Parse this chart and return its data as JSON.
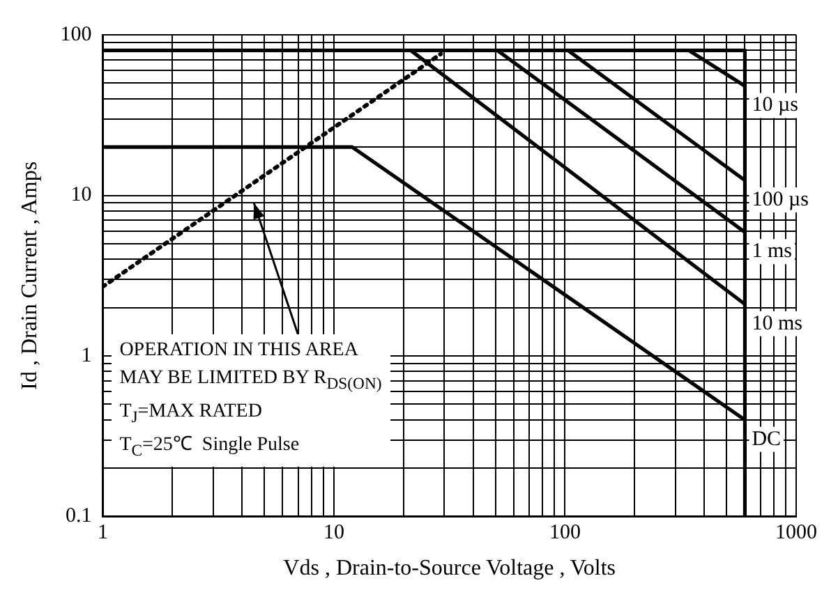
{
  "chart_data": {
    "type": "line",
    "xlabel": "Vds , Drain-to-Source Voltage , Volts",
    "ylabel": "Id , Drain Current , Amps",
    "log": "xy",
    "xlim": [
      1,
      1000
    ],
    "ylim": [
      0.1,
      100
    ],
    "xticks": [
      1,
      {
        "value": 2,
        "label": null
      },
      {
        "value": 3,
        "label": null
      },
      {
        "value": 4,
        "label": null
      },
      {
        "value": 5,
        "label": null
      },
      {
        "value": 6,
        "label": null
      },
      {
        "value": 7,
        "label": null
      },
      {
        "value": 8,
        "label": null
      },
      {
        "value": 9,
        "label": null
      },
      10,
      {
        "value": 20,
        "label": null
      },
      {
        "value": 30,
        "label": null
      },
      {
        "value": 40,
        "label": null
      },
      {
        "value": 50,
        "label": null
      },
      {
        "value": 60,
        "label": null
      },
      {
        "value": 70,
        "label": null
      },
      {
        "value": 80,
        "label": null
      },
      {
        "value": 90,
        "label": null
      },
      100,
      {
        "value": 200,
        "label": null
      },
      {
        "value": 300,
        "label": null
      },
      {
        "value": 400,
        "label": null
      },
      {
        "value": 500,
        "label": null
      },
      {
        "value": 600,
        "label": null
      },
      {
        "value": 700,
        "label": null
      },
      {
        "value": 800,
        "label": null
      },
      {
        "value": 900,
        "label": null
      },
      1000
    ],
    "yticks": [
      0.1,
      {
        "value": 0.2,
        "label": null
      },
      {
        "value": 0.3,
        "label": null
      },
      {
        "value": 0.4,
        "label": null
      },
      {
        "value": 0.5,
        "label": null
      },
      {
        "value": 0.6,
        "label": null
      },
      {
        "value": 0.7,
        "label": null
      },
      {
        "value": 0.8,
        "label": null
      },
      {
        "value": 0.9,
        "label": null
      },
      1,
      {
        "value": 2,
        "label": null
      },
      {
        "value": 3,
        "label": null
      },
      {
        "value": 4,
        "label": null
      },
      {
        "value": 5,
        "label": null
      },
      {
        "value": 6,
        "label": null
      },
      {
        "value": 7,
        "label": null
      },
      {
        "value": 8,
        "label": null
      },
      {
        "value": 9,
        "label": null
      },
      10,
      {
        "value": 20,
        "label": null
      },
      {
        "value": 30,
        "label": null
      },
      {
        "value": 40,
        "label": null
      },
      {
        "value": 50,
        "label": null
      },
      {
        "value": 60,
        "label": null
      },
      {
        "value": 70,
        "label": null
      },
      {
        "value": 80,
        "label": null
      },
      {
        "value": 90,
        "label": null
      },
      100
    ],
    "grid": true,
    "legend": false,
    "marker": "none",
    "line_style": "solid",
    "series": [
      {
        "color": "#000000",
        "x": [
          1,
          600,
          600
        ],
        "values": [
          80,
          80,
          0.1
        ]
      },
      {
        "color": "#000000",
        "line_style": "dotted",
        "x": [
          1,
          29
        ],
        "values": [
          2.7,
          76
        ]
      },
      {
        "name": "10 µs",
        "color": "#000000",
        "x": [
          343,
          600
        ],
        "values": [
          80,
          48
        ]
      },
      {
        "name": "100 µs",
        "color": "#000000",
        "x": [
          103,
          600
        ],
        "values": [
          80,
          12.4
        ]
      },
      {
        "name": "1 ms",
        "color": "#000000",
        "x": [
          51,
          600
        ],
        "values": [
          80,
          5.9
        ]
      },
      {
        "name": "10 ms",
        "color": "#000000",
        "x": [
          21.5,
          600
        ],
        "values": [
          80,
          2.1
        ]
      },
      {
        "name": "DC",
        "color": "#000000",
        "x": [
          1,
          12,
          600
        ],
        "values": [
          20,
          20,
          0.4
        ]
      }
    ],
    "annotations": [
      "OPERATION IN THIS AREA",
      "MAY BE LIMITED BY R$_{DS(ON)}$",
      "T$_{J}$=MAX RATED",
      "T$_{C}$=25℃  Single Pulse"
    ]
  }
}
